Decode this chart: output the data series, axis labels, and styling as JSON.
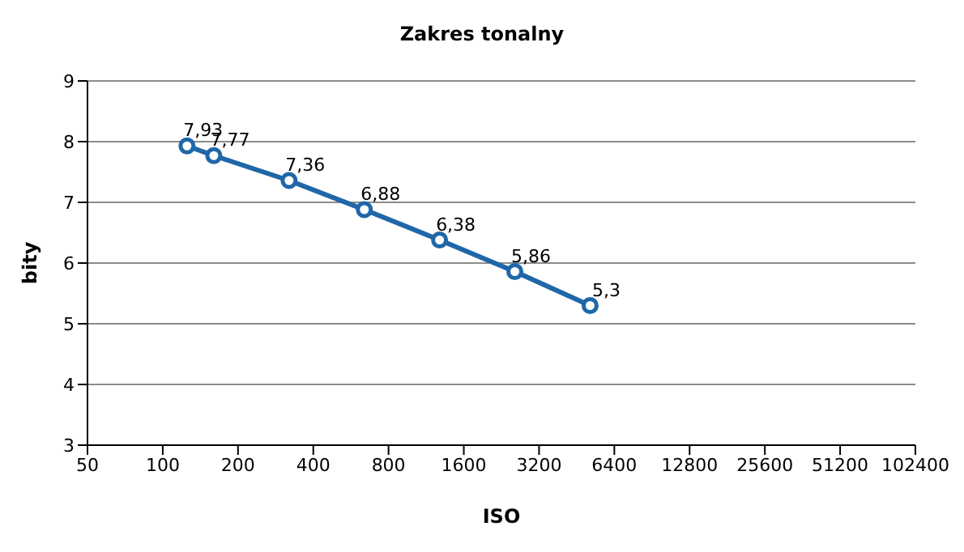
{
  "chart_data": {
    "type": "line",
    "title": "Zakres tonalny",
    "xlabel": "ISO",
    "ylabel": "bity",
    "x": [
      125,
      160,
      320,
      640,
      1280,
      2560,
      5120
    ],
    "series": [
      {
        "color": "#1f67a8",
        "values": [
          7.93,
          7.77,
          7.36,
          6.88,
          6.38,
          5.86,
          5.3
        ]
      }
    ],
    "value_labels": [
      "7,93",
      "7,77",
      "7,36",
      "6,88",
      "6,38",
      "5,86",
      "5,3"
    ],
    "log": "x",
    "xlim": [
      50,
      102400
    ],
    "xticks": [
      50,
      100,
      200,
      400,
      800,
      1600,
      3200,
      6400,
      12800,
      25600,
      51200,
      102400
    ],
    "ylim": [
      3,
      9
    ],
    "yticks": [
      3,
      4,
      5,
      6,
      7,
      8,
      9
    ],
    "grid": "y",
    "marker": "circle",
    "line_style": "solid"
  }
}
